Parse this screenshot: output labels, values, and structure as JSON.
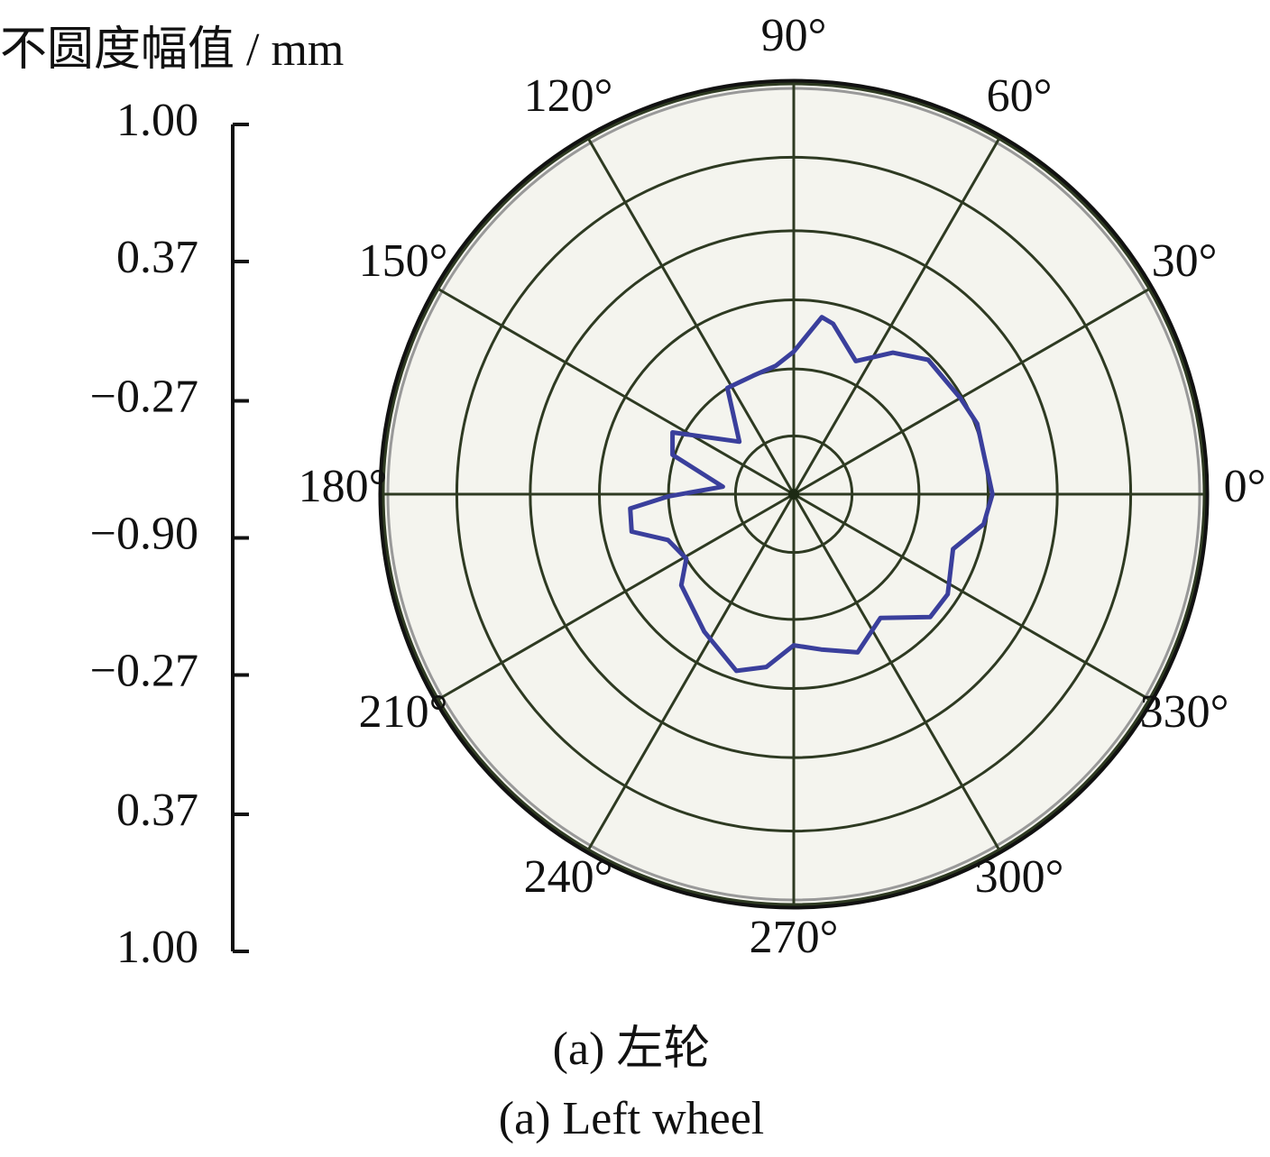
{
  "chart_data": {
    "type": "polar-line",
    "axis_label": "不圆度幅值 / mm",
    "caption": "(a)  左轮",
    "caption_en": "(a)  Left wheel",
    "rlim": [
      -0.9,
      1.0
    ],
    "rticks": [
      {
        "value": 1.0,
        "label": "1.00"
      },
      0.37,
      {
        "value": -0.27,
        "label": "−0.27"
      },
      {
        "value": -0.9,
        "label": "−0.90"
      },
      {
        "value": -0.27,
        "label": "−0.27"
      },
      0.37,
      {
        "value": 1.0,
        "label": "1.00"
      }
    ],
    "rgrid": [
      -0.63,
      -0.32,
      0.0,
      0.32,
      0.66,
      1.0
    ],
    "thetaticks": [
      {
        "value": 0,
        "label": "0°"
      },
      {
        "value": 30,
        "label": "30°"
      },
      {
        "value": 60,
        "label": "60°"
      },
      {
        "value": 90,
        "label": "90°"
      },
      {
        "value": 120,
        "label": "120°"
      },
      {
        "value": 150,
        "label": "150°"
      },
      {
        "value": 180,
        "label": "180°"
      },
      {
        "value": 210,
        "label": "210°"
      },
      {
        "value": 240,
        "label": "240°"
      },
      {
        "value": 270,
        "label": "270°"
      },
      {
        "value": 300,
        "label": "300°"
      },
      {
        "value": 330,
        "label": "330°"
      }
    ],
    "grid": true,
    "series": [
      {
        "color": "#3a3f9c",
        "theta": [
          0,
          21,
          30,
          45,
          55,
          65,
          77,
          81,
          90,
          98,
          109,
          122,
          136,
          153,
          162,
          174,
          181,
          185,
          193,
          200,
          211,
          219,
          237,
          252,
          261,
          270,
          280,
          292,
          305,
          318,
          327,
          341,
          351
        ],
        "values": [
          0.02,
          0.01,
          -0.01,
          -0.02,
          -0.1,
          -0.22,
          -0.09,
          -0.07,
          -0.24,
          -0.3,
          -0.32,
          -0.32,
          -0.55,
          -0.27,
          -0.31,
          -0.57,
          -0.32,
          -0.14,
          -0.13,
          -0.28,
          -0.32,
          -0.23,
          -0.14,
          -0.04,
          -0.09,
          -0.2,
          -0.17,
          -0.11,
          -0.2,
          -0.05,
          -0.05,
          -0.12,
          -0.01
        ]
      }
    ]
  }
}
